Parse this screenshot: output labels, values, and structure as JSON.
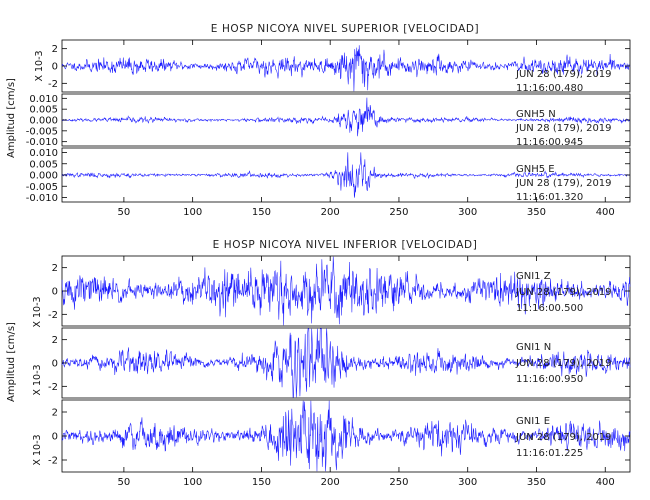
{
  "chart_data": [
    {
      "type": "line",
      "title": "E HOSP NICOYA NIVEL SUPERIOR [VELOCIDAD]",
      "ylabel": "Amplitud [cm/s]",
      "xlim": [
        5,
        418
      ],
      "xticks": [
        50,
        100,
        150,
        200,
        250,
        300,
        350,
        400
      ],
      "line_color": "#1a1aff",
      "panels": [
        {
          "name": "",
          "scale_label": "X 10-3",
          "ylim": [
            -3,
            3
          ],
          "yticks": [
            -2,
            0,
            2
          ],
          "ytick_labels": [
            "-2",
            "0",
            "2"
          ],
          "station_label": "",
          "date": "JUN 28 (179), 2019",
          "time": "11:16:00.480",
          "noise_amplitude": 0.55,
          "burst_center": 220,
          "burst_width": 16,
          "burst_amplitude": 1.6,
          "seed": 11
        },
        {
          "name": "GNH5 N",
          "scale_label": "",
          "ylim": [
            -0.012,
            0.012
          ],
          "yticks": [
            -0.01,
            -0.005,
            0.0,
            0.005,
            0.01
          ],
          "ytick_labels": [
            "-0.010",
            "-0.005",
            "0.000",
            "0.005",
            "0.010"
          ],
          "station_label": "GNH5    N",
          "date": "JUN 28 (179), 2019",
          "time": "11:16:00.945",
          "noise_amplitude": 0.0007,
          "burst_center": 222,
          "burst_width": 14,
          "burst_amplitude": 0.0045,
          "seed": 23
        },
        {
          "name": "GNH5 E",
          "scale_label": "",
          "ylim": [
            -0.012,
            0.012
          ],
          "yticks": [
            -0.01,
            -0.005,
            0.0,
            0.005,
            0.01
          ],
          "ytick_labels": [
            "-0.010",
            "-0.005",
            "0.000",
            "0.005",
            "0.010"
          ],
          "station_label": "GNH5    E",
          "date": "JUN 28 (179), 2019",
          "time": "11:16:01.320",
          "noise_amplitude": 0.0006,
          "burst_center": 218,
          "burst_width": 12,
          "burst_amplitude": 0.0048,
          "seed": 37
        }
      ]
    },
    {
      "type": "line",
      "title": "E HOSP NICOYA NIVEL INFERIOR [VELOCIDAD]",
      "ylabel": "Amplitud [cm/s]",
      "xlim": [
        5,
        418
      ],
      "xticks": [
        50,
        100,
        150,
        200,
        250,
        300,
        350,
        400
      ],
      "line_color": "#1a1aff",
      "panels": [
        {
          "name": "GNI1 Z",
          "scale_label": "X 10-3",
          "ylim": [
            -3,
            3
          ],
          "yticks": [
            -2,
            0,
            2
          ],
          "ytick_labels": [
            "-2",
            "0",
            "2"
          ],
          "station_label": "GNI1    Z",
          "date": "JUN 28 (179), 2019",
          "time": "11:16:00.500",
          "noise_amplitude": 0.9,
          "burst_center": 185,
          "burst_width": 45,
          "burst_amplitude": 0.9,
          "seed": 51
        },
        {
          "name": "GNI1 N",
          "scale_label": "X 10-3",
          "ylim": [
            -3,
            3
          ],
          "yticks": [
            -2,
            0,
            2
          ],
          "ytick_labels": [
            "-2",
            "0",
            "2"
          ],
          "station_label": "GNI1    N",
          "date": "JUN 28 (179), 2019",
          "time": "11:16:00.950",
          "noise_amplitude": 0.55,
          "burst_center": 188,
          "burst_width": 22,
          "burst_amplitude": 1.4,
          "seed": 67
        },
        {
          "name": "GNI1 E",
          "scale_label": "X 10-3",
          "ylim": [
            -3,
            3
          ],
          "yticks": [
            -2,
            0,
            2
          ],
          "ytick_labels": [
            "-2",
            "0",
            "2"
          ],
          "station_label": "GNI1    E",
          "date": "JUN 28 (179), 2019",
          "time": "11:16:01.225",
          "noise_amplitude": 0.65,
          "burst_center": 190,
          "burst_width": 24,
          "burst_amplitude": 1.6,
          "seed": 79
        }
      ]
    }
  ]
}
